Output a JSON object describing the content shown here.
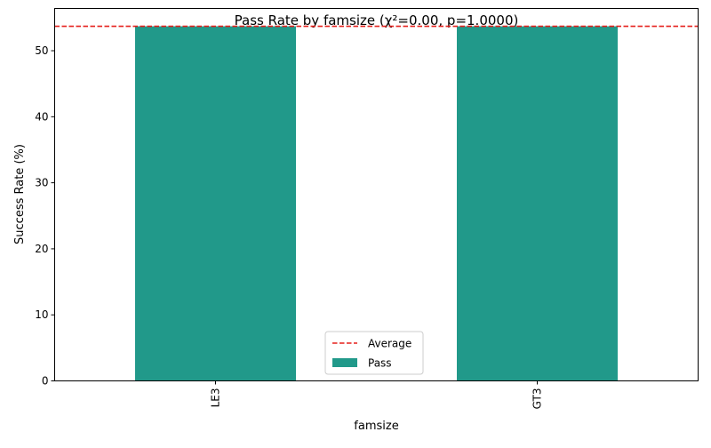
{
  "chart_data": {
    "type": "bar",
    "title": "Pass Rate by famsize (χ²=0.00, p=1.0000)",
    "xlabel": "famsize",
    "ylabel": "Success Rate (%)",
    "categories": [
      "LE3",
      "GT3"
    ],
    "series": [
      {
        "name": "Pass",
        "values": [
          53.7,
          53.7
        ],
        "color": "#21998a"
      }
    ],
    "reference_line": {
      "name": "Average",
      "value": 53.7,
      "color": "#e5201c",
      "style": "dashed"
    },
    "ylim": [
      0,
      56.4
    ],
    "yticks": [
      0,
      10,
      20,
      30,
      40,
      50
    ],
    "grid": false,
    "legend_position": "lower center"
  }
}
